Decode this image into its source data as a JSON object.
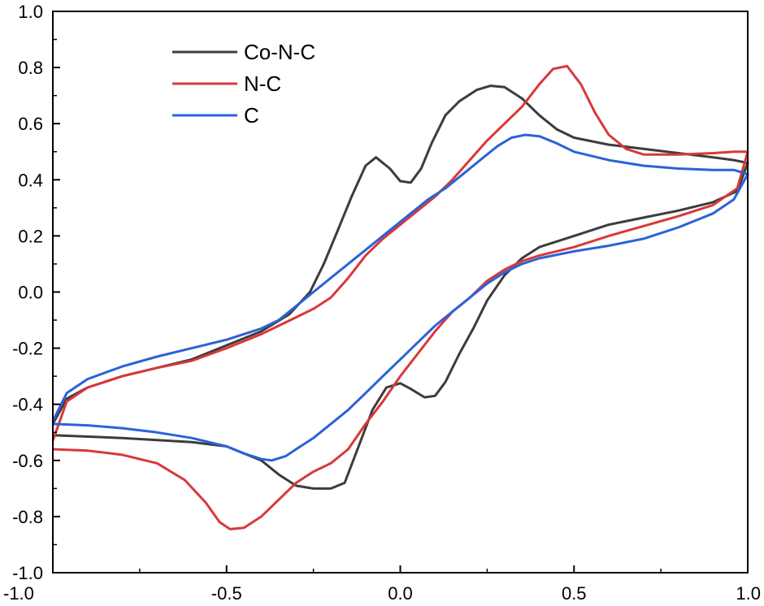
{
  "chart_data": {
    "type": "line",
    "title": "",
    "xlabel": "",
    "ylabel": "",
    "xlim": [
      -1.0,
      1.0
    ],
    "ylim": [
      -1.0,
      1.0
    ],
    "x_ticks": [
      "-1.0",
      "-0.5",
      "0.0",
      "0.5",
      "1.0"
    ],
    "y_ticks": [
      "1.0",
      "0.8",
      "0.6",
      "0.4",
      "0.2",
      "0.0",
      "-0.2",
      "-0.4",
      "-0.6",
      "-0.8",
      "-1.0"
    ],
    "grid": false,
    "legend_position": "top-left",
    "series": [
      {
        "name": "Co-N-C",
        "color": "#3c3c3c",
        "points": [
          [
            -1.0,
            -0.51
          ],
          [
            -0.8,
            -0.52
          ],
          [
            -0.6,
            -0.535
          ],
          [
            -0.5,
            -0.55
          ],
          [
            -0.4,
            -0.6
          ],
          [
            -0.35,
            -0.65
          ],
          [
            -0.3,
            -0.69
          ],
          [
            -0.25,
            -0.7
          ],
          [
            -0.2,
            -0.7
          ],
          [
            -0.16,
            -0.68
          ],
          [
            -0.12,
            -0.55
          ],
          [
            -0.08,
            -0.42
          ],
          [
            -0.04,
            -0.34
          ],
          [
            0.0,
            -0.325
          ],
          [
            0.03,
            -0.345
          ],
          [
            0.07,
            -0.375
          ],
          [
            0.1,
            -0.37
          ],
          [
            0.13,
            -0.32
          ],
          [
            0.17,
            -0.22
          ],
          [
            0.21,
            -0.13
          ],
          [
            0.25,
            -0.03
          ],
          [
            0.3,
            0.06
          ],
          [
            0.35,
            0.12
          ],
          [
            0.4,
            0.16
          ],
          [
            0.5,
            0.2
          ],
          [
            0.6,
            0.24
          ],
          [
            0.7,
            0.265
          ],
          [
            0.8,
            0.29
          ],
          [
            0.9,
            0.32
          ],
          [
            0.97,
            0.36
          ],
          [
            1.0,
            0.46
          ],
          [
            0.96,
            0.47
          ],
          [
            0.9,
            0.48
          ],
          [
            0.8,
            0.495
          ],
          [
            0.7,
            0.51
          ],
          [
            0.6,
            0.525
          ],
          [
            0.5,
            0.55
          ],
          [
            0.45,
            0.58
          ],
          [
            0.4,
            0.63
          ],
          [
            0.35,
            0.69
          ],
          [
            0.3,
            0.73
          ],
          [
            0.26,
            0.735
          ],
          [
            0.22,
            0.72
          ],
          [
            0.17,
            0.68
          ],
          [
            0.13,
            0.63
          ],
          [
            0.09,
            0.53
          ],
          [
            0.06,
            0.44
          ],
          [
            0.03,
            0.39
          ],
          [
            0.0,
            0.395
          ],
          [
            -0.03,
            0.44
          ],
          [
            -0.07,
            0.48
          ],
          [
            -0.1,
            0.45
          ],
          [
            -0.14,
            0.34
          ],
          [
            -0.18,
            0.22
          ],
          [
            -0.22,
            0.1
          ],
          [
            -0.26,
            0.0
          ],
          [
            -0.32,
            -0.08
          ],
          [
            -0.4,
            -0.14
          ],
          [
            -0.5,
            -0.19
          ],
          [
            -0.6,
            -0.24
          ],
          [
            -0.7,
            -0.27
          ],
          [
            -0.8,
            -0.3
          ],
          [
            -0.9,
            -0.34
          ],
          [
            -0.96,
            -0.38
          ],
          [
            -1.0,
            -0.47
          ]
        ]
      },
      {
        "name": "N-C",
        "color": "#d9383a",
        "points": [
          [
            -1.0,
            -0.56
          ],
          [
            -0.9,
            -0.565
          ],
          [
            -0.8,
            -0.58
          ],
          [
            -0.7,
            -0.61
          ],
          [
            -0.62,
            -0.67
          ],
          [
            -0.56,
            -0.75
          ],
          [
            -0.52,
            -0.82
          ],
          [
            -0.49,
            -0.845
          ],
          [
            -0.45,
            -0.84
          ],
          [
            -0.4,
            -0.8
          ],
          [
            -0.35,
            -0.74
          ],
          [
            -0.3,
            -0.68
          ],
          [
            -0.25,
            -0.64
          ],
          [
            -0.2,
            -0.61
          ],
          [
            -0.15,
            -0.56
          ],
          [
            -0.1,
            -0.47
          ],
          [
            -0.05,
            -0.39
          ],
          [
            0.0,
            -0.3
          ],
          [
            0.05,
            -0.22
          ],
          [
            0.1,
            -0.14
          ],
          [
            0.15,
            -0.07
          ],
          [
            0.2,
            -0.02
          ],
          [
            0.25,
            0.04
          ],
          [
            0.3,
            0.08
          ],
          [
            0.35,
            0.11
          ],
          [
            0.4,
            0.13
          ],
          [
            0.5,
            0.16
          ],
          [
            0.6,
            0.2
          ],
          [
            0.7,
            0.235
          ],
          [
            0.8,
            0.27
          ],
          [
            0.9,
            0.31
          ],
          [
            0.97,
            0.37
          ],
          [
            1.0,
            0.5
          ],
          [
            0.96,
            0.5
          ],
          [
            0.9,
            0.495
          ],
          [
            0.8,
            0.49
          ],
          [
            0.7,
            0.49
          ],
          [
            0.65,
            0.51
          ],
          [
            0.6,
            0.56
          ],
          [
            0.56,
            0.64
          ],
          [
            0.52,
            0.74
          ],
          [
            0.48,
            0.805
          ],
          [
            0.44,
            0.795
          ],
          [
            0.4,
            0.74
          ],
          [
            0.35,
            0.66
          ],
          [
            0.3,
            0.6
          ],
          [
            0.25,
            0.54
          ],
          [
            0.2,
            0.47
          ],
          [
            0.15,
            0.4
          ],
          [
            0.1,
            0.34
          ],
          [
            0.05,
            0.29
          ],
          [
            0.0,
            0.24
          ],
          [
            -0.05,
            0.19
          ],
          [
            -0.1,
            0.13
          ],
          [
            -0.15,
            0.05
          ],
          [
            -0.2,
            -0.02
          ],
          [
            -0.25,
            -0.06
          ],
          [
            -0.3,
            -0.09
          ],
          [
            -0.35,
            -0.12
          ],
          [
            -0.4,
            -0.15
          ],
          [
            -0.5,
            -0.2
          ],
          [
            -0.6,
            -0.245
          ],
          [
            -0.7,
            -0.27
          ],
          [
            -0.8,
            -0.3
          ],
          [
            -0.9,
            -0.34
          ],
          [
            -0.96,
            -0.39
          ],
          [
            -1.0,
            -0.53
          ]
        ]
      },
      {
        "name": "C",
        "color": "#2a63d6",
        "points": [
          [
            -1.0,
            -0.47
          ],
          [
            -0.9,
            -0.475
          ],
          [
            -0.8,
            -0.485
          ],
          [
            -0.7,
            -0.5
          ],
          [
            -0.6,
            -0.52
          ],
          [
            -0.5,
            -0.55
          ],
          [
            -0.45,
            -0.575
          ],
          [
            -0.4,
            -0.595
          ],
          [
            -0.37,
            -0.6
          ],
          [
            -0.33,
            -0.585
          ],
          [
            -0.3,
            -0.56
          ],
          [
            -0.25,
            -0.52
          ],
          [
            -0.2,
            -0.47
          ],
          [
            -0.15,
            -0.42
          ],
          [
            -0.1,
            -0.36
          ],
          [
            -0.05,
            -0.3
          ],
          [
            0.0,
            -0.24
          ],
          [
            0.05,
            -0.18
          ],
          [
            0.1,
            -0.12
          ],
          [
            0.15,
            -0.07
          ],
          [
            0.2,
            -0.02
          ],
          [
            0.25,
            0.03
          ],
          [
            0.3,
            0.07
          ],
          [
            0.35,
            0.1
          ],
          [
            0.4,
            0.12
          ],
          [
            0.5,
            0.145
          ],
          [
            0.6,
            0.165
          ],
          [
            0.7,
            0.19
          ],
          [
            0.8,
            0.23
          ],
          [
            0.9,
            0.28
          ],
          [
            0.96,
            0.33
          ],
          [
            1.0,
            0.42
          ],
          [
            0.96,
            0.435
          ],
          [
            0.9,
            0.435
          ],
          [
            0.8,
            0.44
          ],
          [
            0.7,
            0.45
          ],
          [
            0.6,
            0.47
          ],
          [
            0.5,
            0.5
          ],
          [
            0.45,
            0.53
          ],
          [
            0.4,
            0.555
          ],
          [
            0.36,
            0.56
          ],
          [
            0.32,
            0.55
          ],
          [
            0.28,
            0.52
          ],
          [
            0.23,
            0.47
          ],
          [
            0.18,
            0.42
          ],
          [
            0.13,
            0.37
          ],
          [
            0.08,
            0.33
          ],
          [
            0.03,
            0.28
          ],
          [
            0.0,
            0.25
          ],
          [
            -0.05,
            0.2
          ],
          [
            -0.1,
            0.15
          ],
          [
            -0.15,
            0.1
          ],
          [
            -0.2,
            0.05
          ],
          [
            -0.25,
            0.0
          ],
          [
            -0.3,
            -0.05
          ],
          [
            -0.35,
            -0.1
          ],
          [
            -0.4,
            -0.13
          ],
          [
            -0.5,
            -0.17
          ],
          [
            -0.6,
            -0.2
          ],
          [
            -0.7,
            -0.23
          ],
          [
            -0.8,
            -0.265
          ],
          [
            -0.9,
            -0.31
          ],
          [
            -0.96,
            -0.36
          ],
          [
            -1.0,
            -0.46
          ]
        ]
      }
    ]
  }
}
